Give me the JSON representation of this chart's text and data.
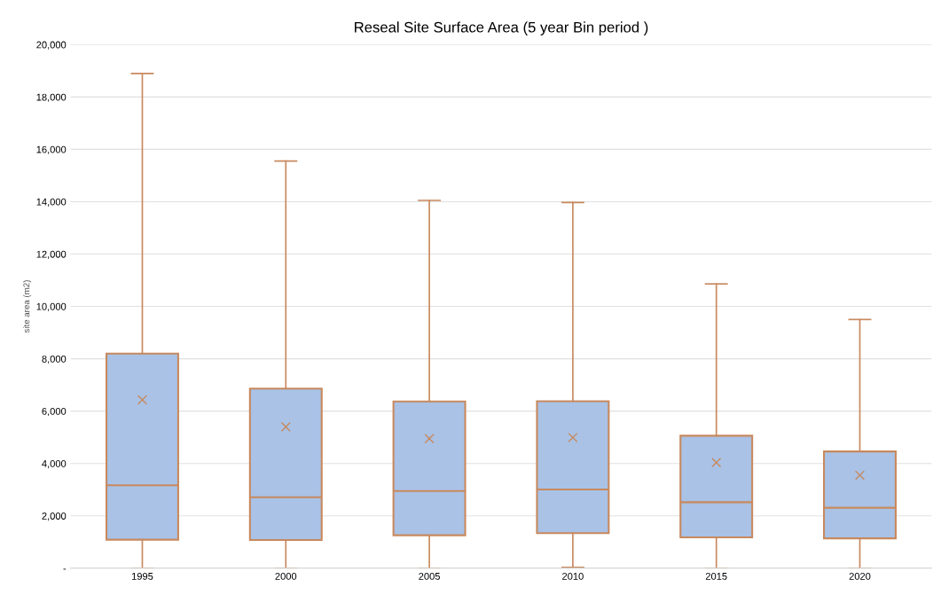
{
  "chart_data": {
    "type": "box",
    "title": "Reseal Site Surface Area (5 year Bin period )",
    "ylabel": "site area (m2)",
    "categories": [
      "1995",
      "2000",
      "2005",
      "2010",
      "2015",
      "2020"
    ],
    "series": [
      {
        "color": "#a9c2e6",
        "boxes": [
          {
            "low": 0,
            "q1": 1090,
            "median": 3170,
            "q3": 8200,
            "high": 18900,
            "mean": 6430
          },
          {
            "low": 0,
            "q1": 1080,
            "median": 2710,
            "q3": 6860,
            "high": 15550,
            "mean": 5400
          },
          {
            "low": 0,
            "q1": 1260,
            "median": 2950,
            "q3": 6370,
            "high": 14050,
            "mean": 4950
          },
          {
            "low": 30,
            "q1": 1340,
            "median": 3010,
            "q3": 6380,
            "high": 13970,
            "mean": 4990
          },
          {
            "low": 0,
            "q1": 1180,
            "median": 2520,
            "q3": 5060,
            "high": 10860,
            "mean": 4040
          },
          {
            "low": 0,
            "q1": 1140,
            "median": 2310,
            "q3": 4460,
            "high": 9500,
            "mean": 3550
          }
        ]
      }
    ],
    "ylim": [
      0,
      20000
    ],
    "yticks": [
      {
        "value": 0,
        "label": "-"
      },
      {
        "value": 2000,
        "label": "2,000"
      },
      {
        "value": 4000,
        "label": "4,000"
      },
      {
        "value": 6000,
        "label": "6,000"
      },
      {
        "value": 8000,
        "label": "8,000"
      },
      {
        "value": 10000,
        "label": "10,000"
      },
      {
        "value": 12000,
        "label": "12,000"
      },
      {
        "value": 14000,
        "label": "14,000"
      },
      {
        "value": 16000,
        "label": "16,000"
      },
      {
        "value": 18000,
        "label": "18,000"
      },
      {
        "value": 20000,
        "label": "20,000"
      }
    ],
    "grid": "y",
    "marker": "cross"
  }
}
